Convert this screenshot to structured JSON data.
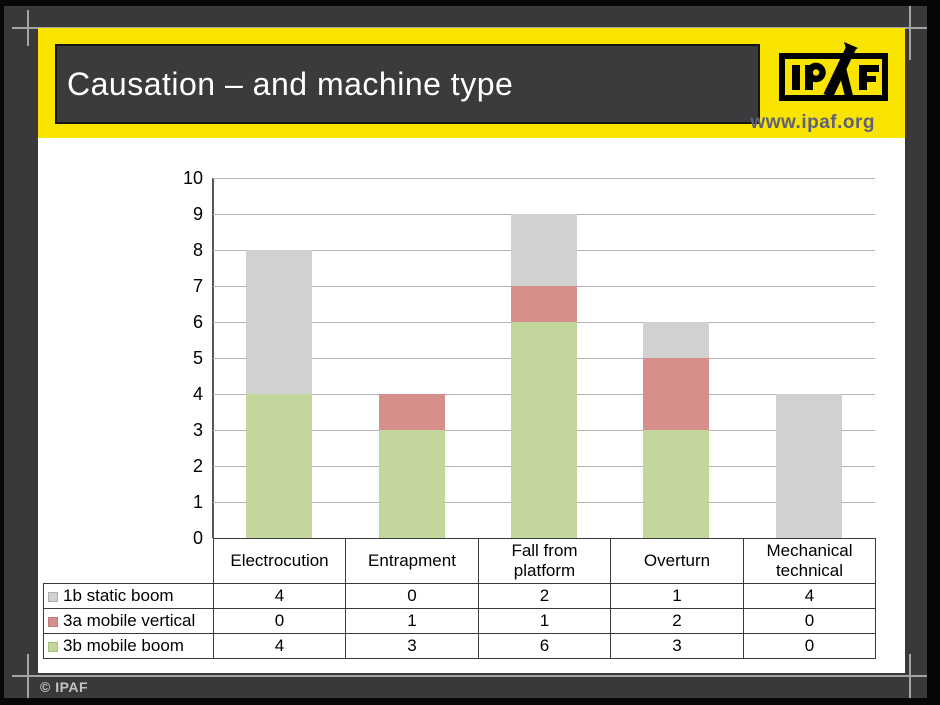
{
  "slide": {
    "title": "Causation – and machine type",
    "logo_text": "IPAF",
    "logo_url": "www.ipaf.org",
    "footer_copyright": "© IPAF"
  },
  "colors": {
    "accent_yellow": "#f9e400",
    "slide_dark_gray": "#3b3b3d",
    "series_gray": "#d1d1d1",
    "series_red": "#d78f8c",
    "series_green": "#c3d69b"
  },
  "chart_data": {
    "type": "bar",
    "stacked": true,
    "title": "",
    "xlabel": "",
    "ylabel": "",
    "categories": [
      "Electrocution",
      "Entrapment",
      "Fall from platform",
      "Overturn",
      "Mechanical technical"
    ],
    "series": [
      {
        "name": "1b static boom",
        "color": "#d1d1d1",
        "marker_border": "#b0b0b0",
        "values": [
          4,
          0,
          2,
          1,
          4
        ]
      },
      {
        "name": "3a mobile vertical",
        "color": "#d78f8c",
        "marker_border": "#bb7a77",
        "values": [
          0,
          1,
          1,
          2,
          0
        ]
      },
      {
        "name": "3b mobile boom",
        "color": "#c3d69b",
        "marker_border": "#a6bd7c",
        "values": [
          4,
          3,
          6,
          3,
          0
        ]
      }
    ],
    "stack_order_bottom_to_top": [
      "3b mobile boom",
      "3a mobile vertical",
      "1b static boom"
    ],
    "ylim": [
      0,
      10
    ],
    "yticks": [
      0,
      1,
      2,
      3,
      4,
      5,
      6,
      7,
      8,
      9,
      10
    ],
    "grid": true,
    "legend_position": "data-table-left-column"
  }
}
